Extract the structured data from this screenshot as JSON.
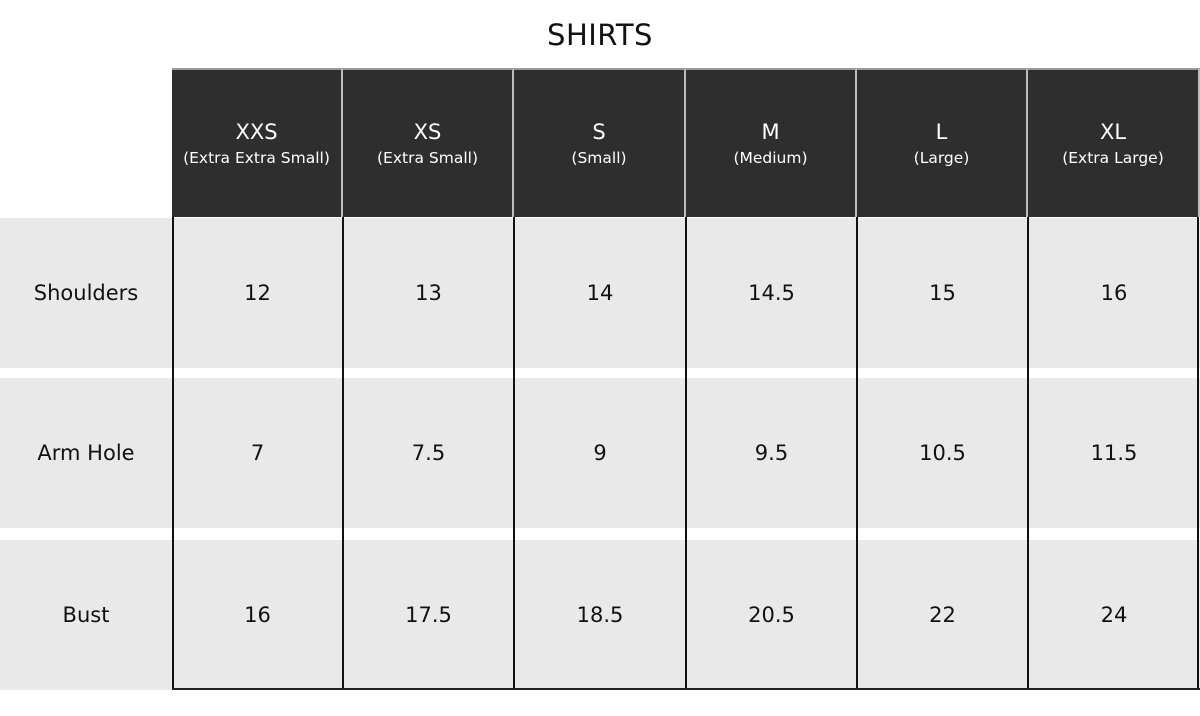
{
  "title": "SHIRTS",
  "sizes": [
    {
      "code": "XXS",
      "desc": "(Extra Extra Small)"
    },
    {
      "code": "XS",
      "desc": "(Extra Small)"
    },
    {
      "code": "S",
      "desc": "(Small)"
    },
    {
      "code": "M",
      "desc": "(Medium)"
    },
    {
      "code": "L",
      "desc": "(Large)"
    },
    {
      "code": "XL",
      "desc": "(Extra Large)"
    }
  ],
  "rows": [
    {
      "label": "Shoulders",
      "values": [
        "12",
        "13",
        "14",
        "14.5",
        "15",
        "16"
      ]
    },
    {
      "label": "Arm Hole",
      "values": [
        "7",
        "7.5",
        "9",
        "9.5",
        "10.5",
        "11.5"
      ]
    },
    {
      "label": "Bust",
      "values": [
        "16",
        "17.5",
        "18.5",
        "20.5",
        "22",
        "24"
      ]
    }
  ],
  "colors": {
    "header_bg": "#2e2e2e",
    "row_bg": "#e9e9e9",
    "grid": "#111111"
  }
}
